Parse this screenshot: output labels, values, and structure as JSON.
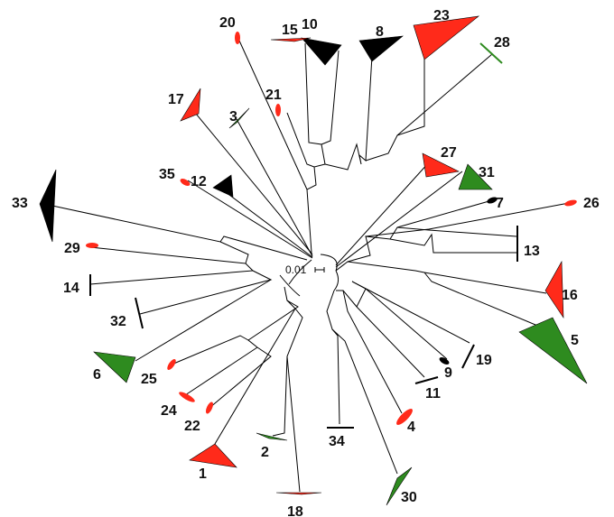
{
  "scale_bar": {
    "label": "0.01"
  },
  "colors": {
    "red": "#ff2a1a",
    "green": "#2e8b1f",
    "black": "#000000",
    "line": "#000000"
  },
  "clades": [
    {
      "id": "1",
      "color": "red",
      "shape": "triangle"
    },
    {
      "id": "2",
      "color": "green",
      "shape": "flat"
    },
    {
      "id": "3",
      "color": "green",
      "shape": "flat"
    },
    {
      "id": "4",
      "color": "red",
      "shape": "oval"
    },
    {
      "id": "5",
      "color": "green",
      "shape": "triangle"
    },
    {
      "id": "6",
      "color": "green",
      "shape": "triangle"
    },
    {
      "id": "7",
      "color": "black",
      "shape": "oval"
    },
    {
      "id": "8",
      "color": "black",
      "shape": "triangle"
    },
    {
      "id": "9",
      "color": "black",
      "shape": "oval"
    },
    {
      "id": "10",
      "color": "black",
      "shape": "triangle"
    },
    {
      "id": "11",
      "color": "black",
      "shape": "bar"
    },
    {
      "id": "12",
      "color": "black",
      "shape": "triangle"
    },
    {
      "id": "13",
      "color": "black",
      "shape": "bar"
    },
    {
      "id": "14",
      "color": "black",
      "shape": "bar"
    },
    {
      "id": "15",
      "color": "red",
      "shape": "flat"
    },
    {
      "id": "16",
      "color": "red",
      "shape": "triangle"
    },
    {
      "id": "17",
      "color": "red",
      "shape": "triangle"
    },
    {
      "id": "18",
      "color": "red",
      "shape": "flat"
    },
    {
      "id": "19",
      "color": "black",
      "shape": "bar"
    },
    {
      "id": "20",
      "color": "red",
      "shape": "oval"
    },
    {
      "id": "21",
      "color": "red",
      "shape": "oval"
    },
    {
      "id": "22",
      "color": "red",
      "shape": "oval"
    },
    {
      "id": "23",
      "color": "red",
      "shape": "triangle"
    },
    {
      "id": "24",
      "color": "red",
      "shape": "oval"
    },
    {
      "id": "25",
      "color": "red",
      "shape": "oval"
    },
    {
      "id": "26",
      "color": "red",
      "shape": "oval"
    },
    {
      "id": "27",
      "color": "red",
      "shape": "triangle"
    },
    {
      "id": "28",
      "color": "green",
      "shape": "bar"
    },
    {
      "id": "29",
      "color": "red",
      "shape": "oval"
    },
    {
      "id": "30",
      "color": "green",
      "shape": "triangle"
    },
    {
      "id": "31",
      "color": "green",
      "shape": "triangle"
    },
    {
      "id": "32",
      "color": "black",
      "shape": "bar"
    },
    {
      "id": "33",
      "color": "black",
      "shape": "triangle"
    },
    {
      "id": "34",
      "color": "black",
      "shape": "bar"
    },
    {
      "id": "35",
      "color": "red",
      "shape": "oval"
    }
  ]
}
